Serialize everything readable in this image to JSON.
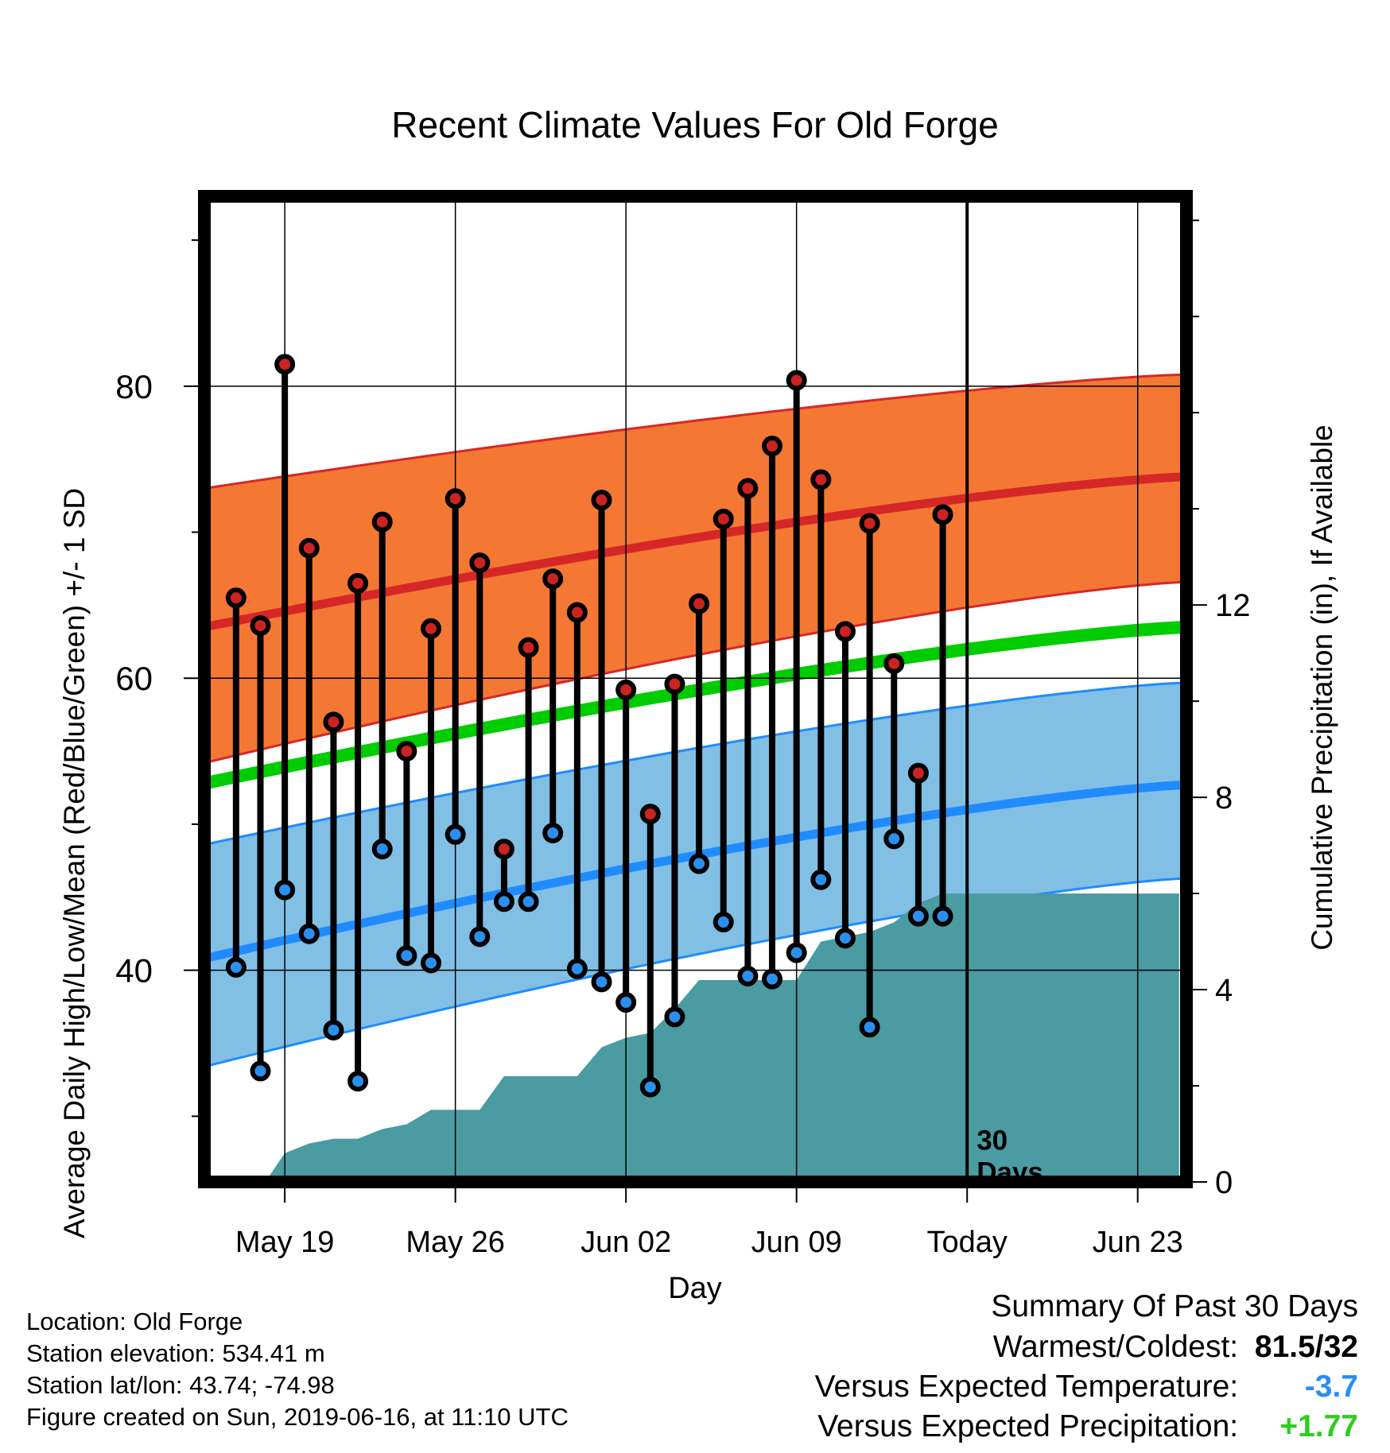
{
  "chart_data": {
    "type": "line",
    "title": "Recent Climate Values For Old Forge",
    "xlabel": "Day",
    "ylabel_left": "Average Daily High/Low/Mean (Red/Blue/Green) +/- 1 SD",
    "ylabel_right": "Cumulative Precipitation (in), If Available",
    "x_ticks": [
      {
        "day": 0,
        "label": "May 19"
      },
      {
        "day": 7,
        "label": "May 26"
      },
      {
        "day": 14,
        "label": "Jun 02"
      },
      {
        "day": 21,
        "label": "Jun 09"
      },
      {
        "day": 28,
        "label": "Today"
      },
      {
        "day": 35,
        "label": "Jun 23"
      }
    ],
    "y_ticks_left": [
      40,
      60,
      80
    ],
    "y_ticks_right": [
      0,
      4,
      8,
      12
    ],
    "xlim": [
      -3.3,
      37.0
    ],
    "ylim_left": [
      25.5,
      93.0
    ],
    "ylim_right": [
      0,
      20.5
    ],
    "today_day": 28,
    "today_annotation": [
      "30",
      "Days"
    ],
    "normal_high": {
      "start": 63.5,
      "end": 73.8,
      "sd_upper": [
        73.0,
        80.8
      ],
      "sd_lower": [
        54.2,
        66.6
      ]
    },
    "normal_low": {
      "start": 40.8,
      "end": 52.7,
      "sd_upper": [
        48.6,
        59.7
      ],
      "sd_lower": [
        33.4,
        46.3
      ]
    },
    "normal_mean": {
      "start": 52.8,
      "end": 63.5
    },
    "observations": [
      {
        "day": -2,
        "high": 65.5,
        "low": 40.2
      },
      {
        "day": -1,
        "high": 63.6,
        "low": 33.1
      },
      {
        "day": 0,
        "high": 81.5,
        "low": 45.5
      },
      {
        "day": 1,
        "high": 68.9,
        "low": 42.5
      },
      {
        "day": 2,
        "high": 57.0,
        "low": 35.9
      },
      {
        "day": 3,
        "high": 66.5,
        "low": 32.4
      },
      {
        "day": 4,
        "high": 70.7,
        "low": 48.3
      },
      {
        "day": 5,
        "high": 55.0,
        "low": 41.0
      },
      {
        "day": 6,
        "high": 63.4,
        "low": 40.5
      },
      {
        "day": 7,
        "high": 72.3,
        "low": 49.3
      },
      {
        "day": 8,
        "high": 67.9,
        "low": 42.3
      },
      {
        "day": 9,
        "high": 48.3,
        "low": 44.7
      },
      {
        "day": 10,
        "high": 62.1,
        "low": 44.7
      },
      {
        "day": 11,
        "high": 66.8,
        "low": 49.4
      },
      {
        "day": 12,
        "high": 64.5,
        "low": 40.1
      },
      {
        "day": 13,
        "high": 72.2,
        "low": 39.2
      },
      {
        "day": 14,
        "high": 59.2,
        "low": 37.8
      },
      {
        "day": 15,
        "high": 50.7,
        "low": 32.0
      },
      {
        "day": 16,
        "high": 59.6,
        "low": 36.8
      },
      {
        "day": 17,
        "high": 65.1,
        "low": 47.3
      },
      {
        "day": 18,
        "high": 70.9,
        "low": 43.3
      },
      {
        "day": 19,
        "high": 73.0,
        "low": 39.6
      },
      {
        "day": 20,
        "high": 75.9,
        "low": 39.4
      },
      {
        "day": 21,
        "high": 80.4,
        "low": 41.2
      },
      {
        "day": 22,
        "high": 73.6,
        "low": 46.2
      },
      {
        "day": 23,
        "high": 63.2,
        "low": 42.2
      },
      {
        "day": 24,
        "high": 70.6,
        "low": 36.1
      },
      {
        "day": 25,
        "high": 61.0,
        "low": 49.0
      },
      {
        "day": 26,
        "high": 53.5,
        "low": 43.7
      },
      {
        "day": 27,
        "high": 71.2,
        "low": 43.7
      }
    ],
    "precip_cumulative": [
      {
        "day": -0.8,
        "value": 0
      },
      {
        "day": 0,
        "value": 0.6
      },
      {
        "day": 1,
        "value": 0.8
      },
      {
        "day": 2,
        "value": 0.9
      },
      {
        "day": 3,
        "value": 0.9
      },
      {
        "day": 4,
        "value": 1.1
      },
      {
        "day": 5,
        "value": 1.2
      },
      {
        "day": 6,
        "value": 1.5
      },
      {
        "day": 7,
        "value": 1.5
      },
      {
        "day": 8,
        "value": 1.5
      },
      {
        "day": 9,
        "value": 2.2
      },
      {
        "day": 10,
        "value": 2.2
      },
      {
        "day": 11,
        "value": 2.2
      },
      {
        "day": 12,
        "value": 2.2
      },
      {
        "day": 13,
        "value": 2.8
      },
      {
        "day": 14,
        "value": 3.0
      },
      {
        "day": 15,
        "value": 3.1
      },
      {
        "day": 16,
        "value": 3.6
      },
      {
        "day": 17,
        "value": 4.2
      },
      {
        "day": 18,
        "value": 4.2
      },
      {
        "day": 19,
        "value": 4.2
      },
      {
        "day": 20,
        "value": 4.2
      },
      {
        "day": 21,
        "value": 4.2
      },
      {
        "day": 22,
        "value": 5.0
      },
      {
        "day": 23,
        "value": 5.1
      },
      {
        "day": 24,
        "value": 5.2
      },
      {
        "day": 25,
        "value": 5.4
      },
      {
        "day": 26,
        "value": 5.8
      },
      {
        "day": 27,
        "value": 6.0
      },
      {
        "day": 28,
        "value": 6.0
      },
      {
        "day": 36.7,
        "value": 6.0
      }
    ],
    "grid": true,
    "colors": {
      "high_band": "#f47833",
      "high_line": "#d62728",
      "low_band": "#82bfe5",
      "low_line": "#1f8bff",
      "mean_line": "#00cc00",
      "precip_fill": "#4a9ba2",
      "high_marker": "#cc2222",
      "low_marker": "#2b8ff0",
      "precip_value": "#2ecc1f",
      "temp_value": "#2a8ef0"
    }
  },
  "info": {
    "location": "Location: Old Forge",
    "elevation": "Station elevation: 534.41 m",
    "latlon": "Station lat/lon: 43.74; -74.98",
    "created": "Figure created on Sun, 2019-06-16, at 11:10 UTC"
  },
  "summary": {
    "title": "Summary Of Past 30 Days",
    "warm_cold_label": "Warmest/Coldest:",
    "warm_cold_value": "81.5/32",
    "temp_label": "Versus Expected Temperature:",
    "temp_value": "-3.7",
    "precip_label": "Versus Expected Precipitation:",
    "precip_value": "+1.77"
  }
}
